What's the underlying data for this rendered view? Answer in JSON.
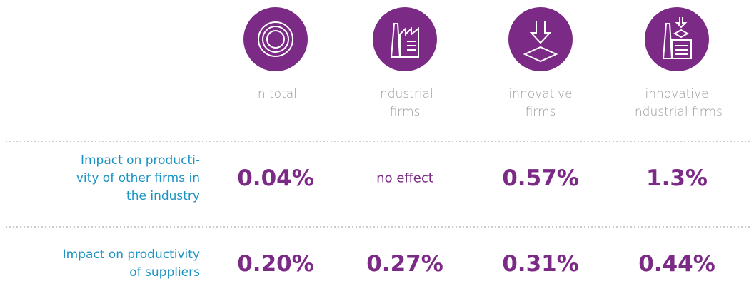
{
  "table": {
    "columns": [
      "in total",
      "industrial\nfirms",
      "innovative\nfirms",
      "innovative\nindustrial firms"
    ],
    "rows": [
      {
        "label": "Impact on producti-\nvity of other firms in\nthe industry",
        "cells": [
          "0.04%",
          "no effect",
          "0.57%",
          "1.3%"
        ]
      },
      {
        "label": "Impact on productivity\nof suppliers",
        "cells": [
          "0.20%",
          "0.27%",
          "0.31%",
          "0.44%"
        ]
      }
    ]
  }
}
